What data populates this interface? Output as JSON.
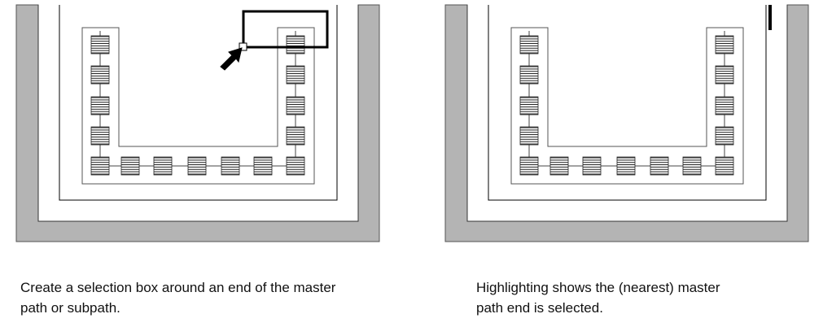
{
  "panels": [
    {
      "id": "left",
      "shows_selection_box": true,
      "shows_cursor": true,
      "shows_end_highlight": false
    },
    {
      "id": "right",
      "shows_selection_box": false,
      "shows_cursor": false,
      "shows_end_highlight": true
    }
  ],
  "captions": {
    "left": {
      "line1": "Create a selection box around an end of the master",
      "line2": "path or subpath."
    },
    "right": {
      "line1": "Highlighting shows the (nearest) master",
      "line2": "path end is selected."
    }
  },
  "colors": {
    "wall_fill": "#b4b4b4",
    "wall_stroke": "#555555",
    "selection_box": "#000000",
    "highlight": "#000000",
    "contact_stroke": "#222222",
    "path_line": "#444444"
  }
}
